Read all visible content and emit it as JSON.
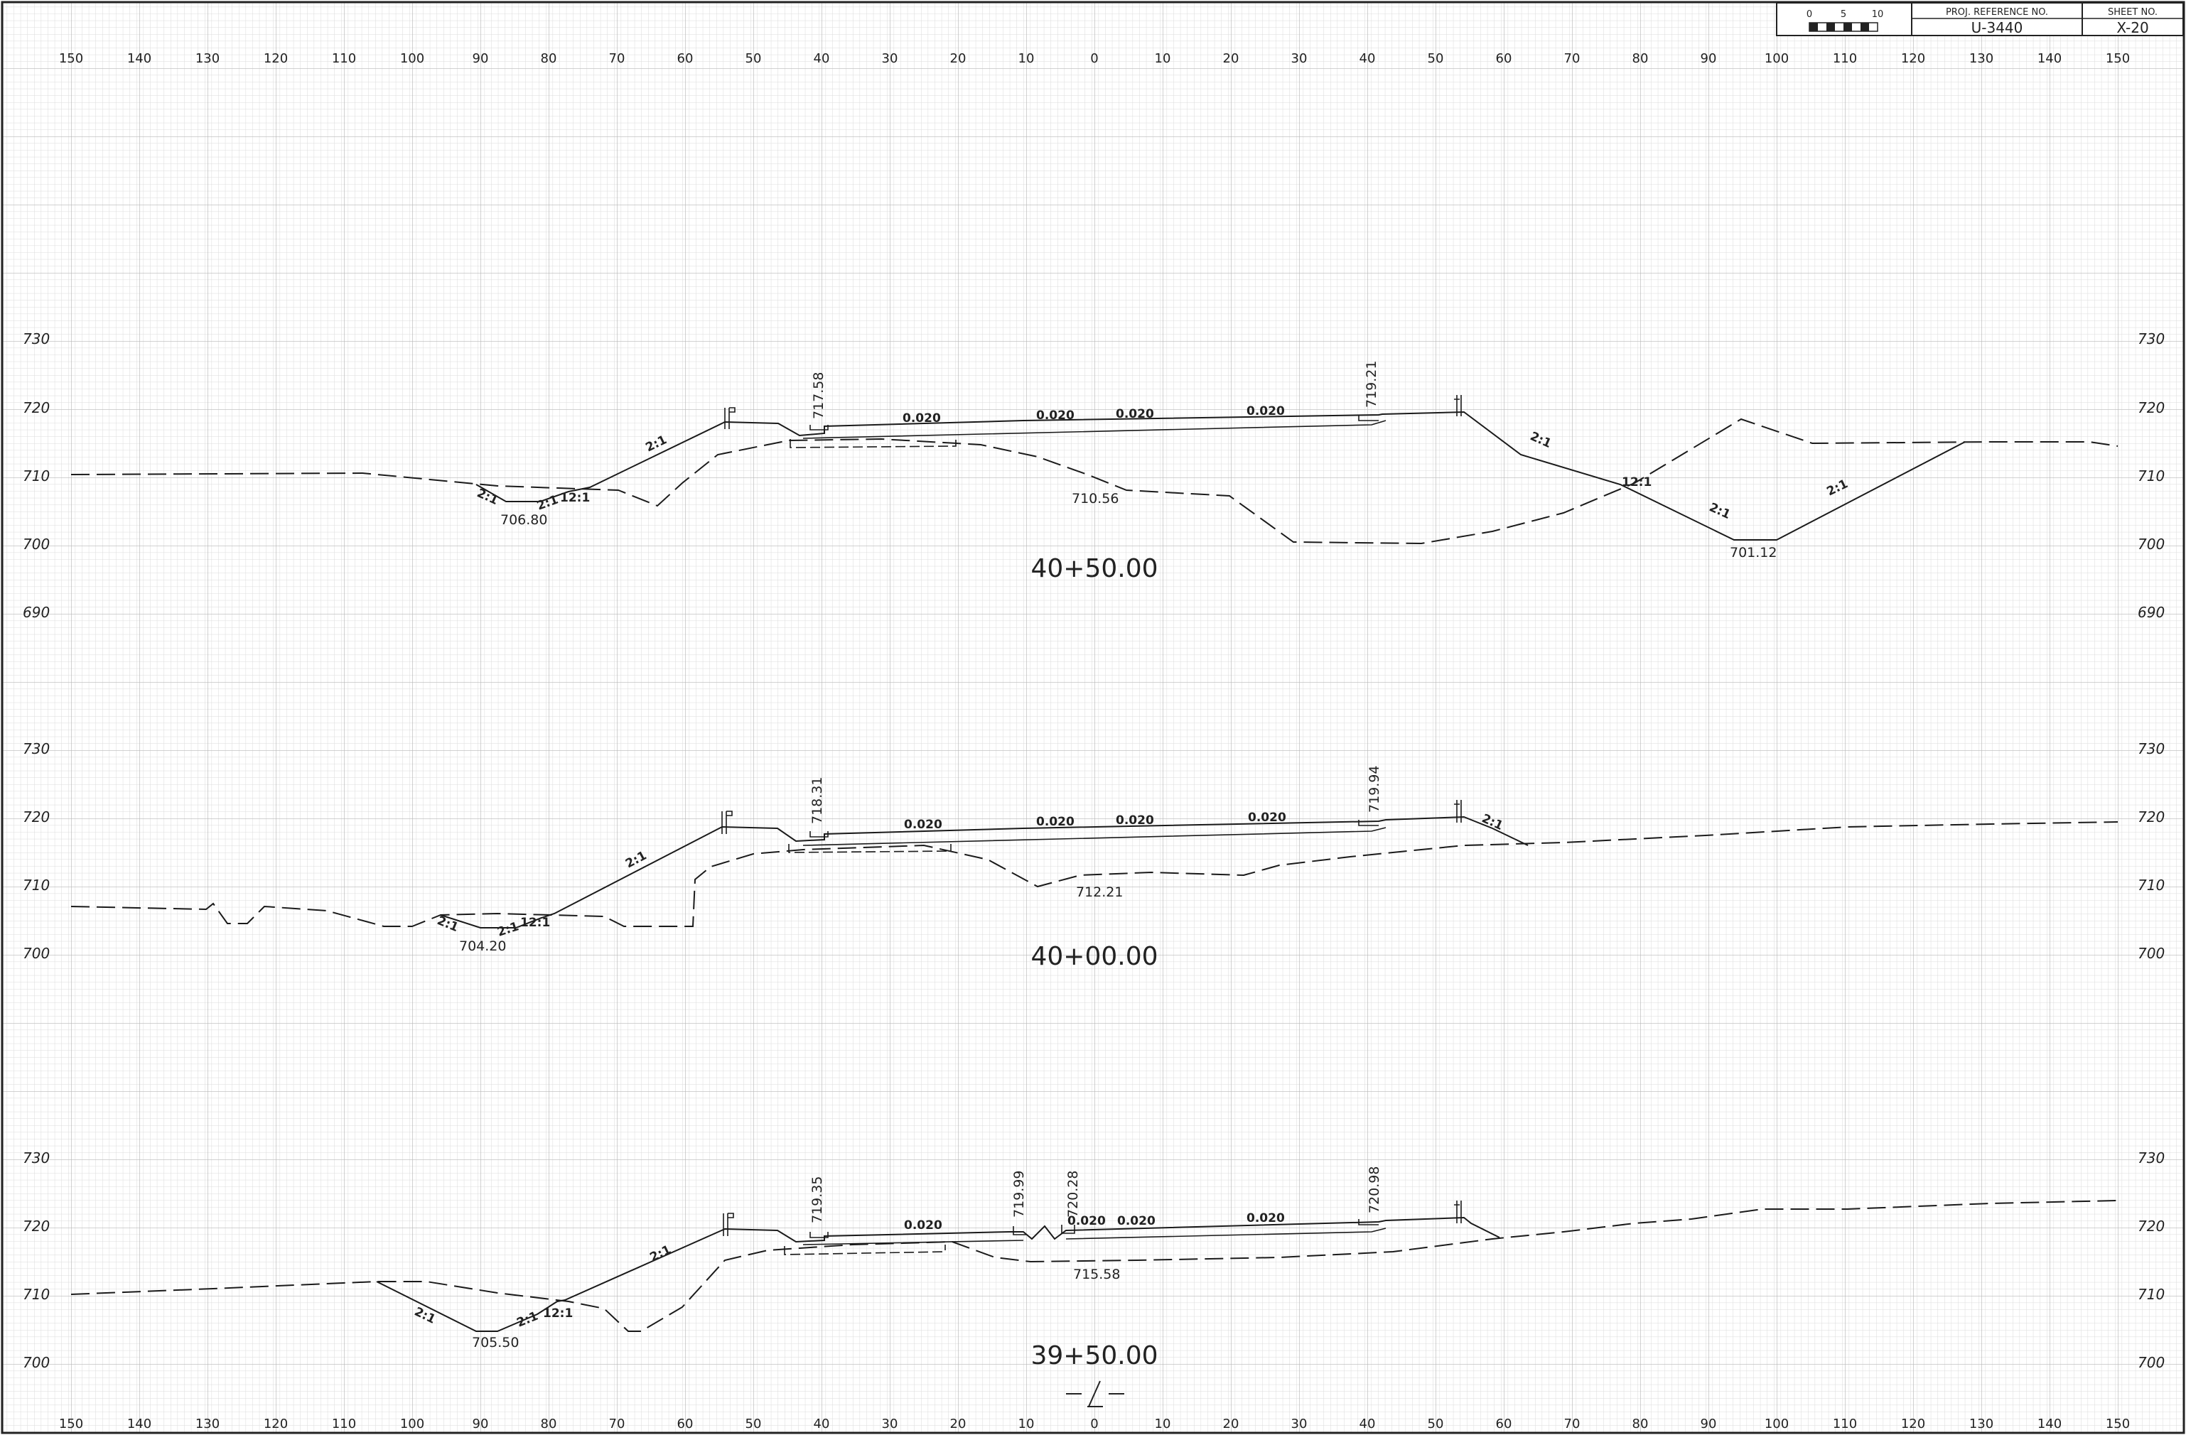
{
  "title_block": {
    "scale_label_0": "0",
    "scale_label_5": "5",
    "scale_label_10": "10",
    "proj_ref_label": "PROJ. REFERENCE NO.",
    "proj_ref_value": "U-3440",
    "sheet_no_label": "SHEET NO.",
    "sheet_no_value": "X-20"
  },
  "offset_ticks": [
    "150",
    "140",
    "130",
    "120",
    "110",
    "100",
    "90",
    "80",
    "70",
    "60",
    "50",
    "40",
    "30",
    "20",
    "10",
    "0",
    "10",
    "20",
    "30",
    "40",
    "50",
    "60",
    "70",
    "80",
    "90",
    "100",
    "110",
    "120",
    "130",
    "140",
    "150"
  ],
  "sections": [
    {
      "station": "40+50.00",
      "elev_labels": [
        "730",
        "720",
        "710",
        "700",
        "690"
      ],
      "labels": {
        "left_ditch": "706.80",
        "left_edge": "717.58",
        "right_edge": "719.21",
        "cl_ground": "710.56",
        "right_ditch": "701.12",
        "slope_fill_left": "2:1",
        "slope_ditch_a": "2:1",
        "slope_ditch_b": "2:1",
        "slope_ditch_c": "12:1",
        "slope_right_a": "2:1",
        "slope_right_b": "12:1",
        "slope_right_c": "2:1",
        "slope_right_d": "2:1",
        "grade_1": "0.020",
        "grade_2": "0.020",
        "grade_3": "0.020",
        "grade_4": "0.020"
      }
    },
    {
      "station": "40+00.00",
      "elev_labels": [
        "730",
        "720",
        "710",
        "700"
      ],
      "labels": {
        "left_ditch": "704.20",
        "left_edge": "718.31",
        "right_edge": "719.94",
        "cl_ground": "712.21",
        "slope_fill_left": "2:1",
        "slope_ditch_a": "2:1",
        "slope_ditch_b": "2:1",
        "slope_ditch_c": "12:1",
        "slope_right_a": "2:1",
        "grade_1": "0.020",
        "grade_2": "0.020",
        "grade_3": "0.020",
        "grade_4": "0.020"
      }
    },
    {
      "station": "39+50.00",
      "elev_labels": [
        "730",
        "720",
        "710",
        "700"
      ],
      "labels": {
        "left_ditch": "705.50",
        "left_edge": "719.35",
        "median_left": "719.99",
        "median_right": "720.28",
        "right_edge": "720.98",
        "cl_ground": "715.58",
        "slope_fill_left": "2:1",
        "slope_ditch_a": "2:1",
        "slope_ditch_b": "2:1",
        "slope_ditch_c": "12:1",
        "grade_1": "0.020",
        "grade_2": "0.020",
        "grade_3": "0.020",
        "grade_4": "0.020"
      }
    }
  ],
  "colors": {
    "line": "#1a1a1a",
    "grid_minor": "#d6d6d6",
    "grid_major": "#b4b4b4"
  }
}
